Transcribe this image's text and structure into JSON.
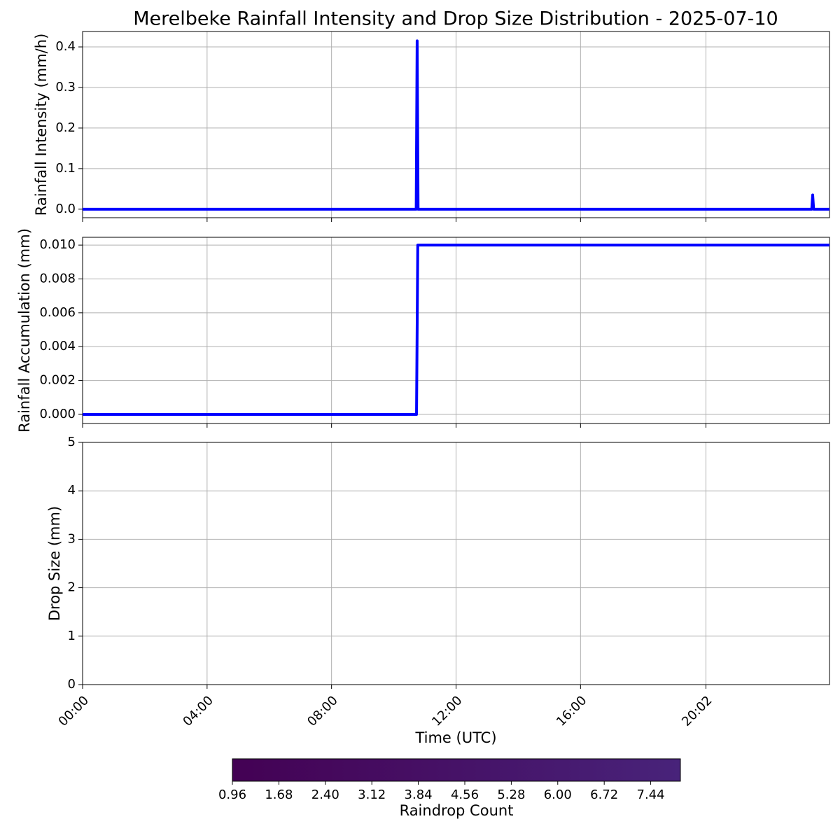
{
  "chart_data": [
    {
      "type": "line",
      "title": "Merelbeke Rainfall Intensity and Drop Size Distribution - 2025-07-10",
      "ylabel": "Rainfall Intensity (mm/h)",
      "x": [
        0,
        10.72,
        10.75,
        10.78,
        23.43,
        23.46,
        23.49,
        24
      ],
      "series": [
        {
          "color": "#0000ff",
          "values": [
            0,
            0,
            0.415,
            0,
            0,
            0.035,
            0,
            0
          ]
        }
      ],
      "xlim": [
        0,
        24
      ],
      "ylim": [
        -0.021,
        0.438
      ],
      "yticks": [
        {
          "value": 0,
          "label": "0.0"
        },
        {
          "value": 0.1,
          "label": "0.1"
        },
        {
          "value": 0.2,
          "label": "0.2"
        },
        {
          "value": 0.3,
          "label": "0.3"
        },
        {
          "value": 0.4,
          "label": "0.4"
        }
      ],
      "grid": true
    },
    {
      "type": "line",
      "ylabel": "Rainfall Accumulation (mm)",
      "x": [
        0,
        10.73,
        10.77,
        24
      ],
      "series": [
        {
          "color": "#0000ff",
          "values": [
            0,
            0,
            0.01,
            0.01
          ]
        }
      ],
      "xlim": [
        0,
        24
      ],
      "ylim": [
        -0.00054,
        0.01046
      ],
      "yticks": [
        {
          "value": 0,
          "label": "0.000"
        },
        {
          "value": 0.002,
          "label": "0.002"
        },
        {
          "value": 0.004,
          "label": "0.004"
        },
        {
          "value": 0.006,
          "label": "0.006"
        },
        {
          "value": 0.008,
          "label": "0.008"
        },
        {
          "value": 0.01,
          "label": "0.010"
        }
      ],
      "grid": true
    },
    {
      "type": "heatmap",
      "ylabel": "Drop Size (mm)",
      "xlabel": "Time (UTC)",
      "xlim": [
        0,
        24
      ],
      "ylim": [
        0,
        5
      ],
      "yticks": [
        0,
        1,
        2,
        3,
        4,
        5
      ],
      "xticks": [
        {
          "value": 0,
          "label": "00:00"
        },
        {
          "value": 4,
          "label": "04:00"
        },
        {
          "value": 8,
          "label": "08:00"
        },
        {
          "value": 12,
          "label": "12:00"
        },
        {
          "value": 16,
          "label": "16:00"
        },
        {
          "value": 20.03,
          "label": "20:02"
        }
      ],
      "grid": true,
      "colorbar": {
        "label": "Raindrop Count",
        "clim": [
          0.96,
          7.9
        ],
        "colors": [
          "#440154",
          "#48237a"
        ],
        "ticks": [
          0.96,
          1.68,
          {
            "value": 2.4,
            "label": "2.40"
          },
          3.12,
          3.84,
          4.56,
          5.28,
          {
            "value": 6,
            "label": "6.00"
          },
          6.72,
          7.44
        ]
      }
    }
  ]
}
